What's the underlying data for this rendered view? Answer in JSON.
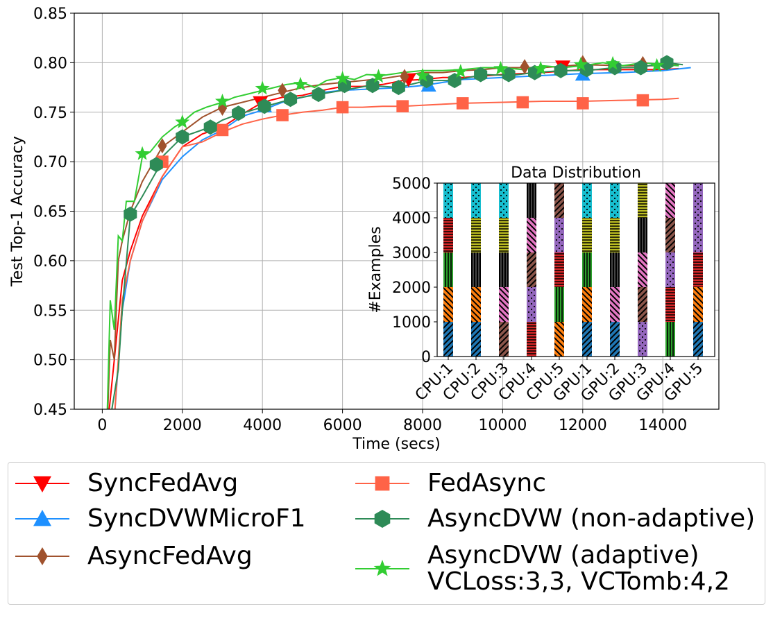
{
  "chart_data": [
    {
      "type": "line",
      "title": "",
      "xlabel": "Time (secs)",
      "ylabel": "Test Top-1 Accuracy",
      "xlim": [
        -700,
        15400
      ],
      "ylim": [
        0.45,
        0.85
      ],
      "xticks": [
        0,
        2000,
        4000,
        6000,
        8000,
        10000,
        12000,
        14000
      ],
      "yticks": [
        0.45,
        0.5,
        0.55,
        0.6,
        0.65,
        0.7,
        0.75,
        0.8,
        0.85
      ],
      "xtick_labels": [
        "0",
        "2000",
        "4000",
        "6000",
        "8000",
        "10000",
        "12000",
        "14000"
      ],
      "ytick_labels": [
        "0.45",
        "0.50",
        "0.55",
        "0.60",
        "0.65",
        "0.70",
        "0.75",
        "0.80",
        "0.85"
      ],
      "grid": true,
      "series": [
        {
          "name": "SyncFedAvg",
          "color": "#ff0000",
          "marker": "triangle-down",
          "x": [
            150,
            300,
            500,
            700,
            1000,
            1500,
            2000,
            2500,
            3000,
            3500,
            4000,
            4500,
            5000,
            5500,
            6000,
            6500,
            7000,
            7500,
            8000,
            8500,
            9000,
            10000,
            11000,
            12000,
            13000,
            14000,
            14400
          ],
          "y": [
            0.44,
            0.5,
            0.58,
            0.61,
            0.645,
            0.685,
            0.715,
            0.728,
            0.735,
            0.748,
            0.76,
            0.765,
            0.767,
            0.772,
            0.776,
            0.776,
            0.778,
            0.782,
            0.783,
            0.785,
            0.785,
            0.788,
            0.79,
            0.793,
            0.793,
            0.793,
            0.794
          ],
          "markers_x": [
            3950,
            7650,
            11500
          ],
          "markers_y": [
            0.76,
            0.783,
            0.796
          ]
        },
        {
          "name": "SyncDVWMicroF1",
          "color": "#1e90ff",
          "marker": "triangle-up",
          "x": [
            300,
            500,
            700,
            1000,
            1500,
            2000,
            2500,
            3000,
            3500,
            4000,
            4500,
            5000,
            5500,
            6000,
            6500,
            7000,
            7500,
            8000,
            8500,
            9000,
            10000,
            11000,
            12000,
            13000,
            14000,
            14700
          ],
          "y": [
            0.44,
            0.55,
            0.6,
            0.64,
            0.682,
            0.705,
            0.722,
            0.732,
            0.746,
            0.752,
            0.76,
            0.765,
            0.77,
            0.772,
            0.773,
            0.774,
            0.775,
            0.777,
            0.78,
            0.783,
            0.785,
            0.787,
            0.789,
            0.79,
            0.792,
            0.795
          ],
          "markers_x": [
            4050,
            8150,
            12000
          ],
          "markers_y": [
            0.756,
            0.777,
            0.788
          ]
        },
        {
          "name": "AsyncFedAvg",
          "color": "#a0522d",
          "marker": "diamond",
          "x": [
            130,
            200,
            300,
            400,
            500,
            700,
            1000,
            1500,
            2000,
            2500,
            3000,
            3500,
            4000,
            4500,
            5000,
            5500,
            6000,
            6500,
            7000,
            7500,
            8000,
            8500,
            9000,
            9500,
            10000,
            11000,
            12000,
            13000,
            14000,
            14400
          ],
          "y": [
            0.44,
            0.52,
            0.5,
            0.6,
            0.62,
            0.65,
            0.68,
            0.715,
            0.73,
            0.745,
            0.755,
            0.76,
            0.765,
            0.77,
            0.775,
            0.778,
            0.78,
            0.782,
            0.784,
            0.787,
            0.79,
            0.79,
            0.792,
            0.793,
            0.795,
            0.795,
            0.798,
            0.797,
            0.797,
            0.798
          ],
          "markers_x": [
            1500,
            3000,
            4500,
            7550,
            10550,
            12000,
            13500
          ],
          "markers_y": [
            0.716,
            0.754,
            0.772,
            0.786,
            0.796,
            0.8,
            0.799
          ]
        },
        {
          "name": "FedAsync",
          "color": "#ff6347",
          "marker": "square",
          "x": [
            300,
            500,
            700,
            1000,
            1500,
            2000,
            2500,
            3000,
            3500,
            4000,
            4500,
            5000,
            5500,
            6000,
            6500,
            7000,
            7500,
            8000,
            8500,
            9000,
            10000,
            11000,
            12000,
            13000,
            14000,
            14400
          ],
          "y": [
            0.44,
            0.56,
            0.6,
            0.64,
            0.685,
            0.715,
            0.72,
            0.73,
            0.738,
            0.743,
            0.747,
            0.75,
            0.752,
            0.755,
            0.755,
            0.756,
            0.756,
            0.757,
            0.758,
            0.759,
            0.76,
            0.761,
            0.761,
            0.762,
            0.763,
            0.764
          ],
          "markers_x": [
            1500,
            3000,
            4500,
            6000,
            7500,
            9000,
            10500,
            12000,
            13500
          ],
          "markers_y": [
            0.7,
            0.732,
            0.747,
            0.755,
            0.756,
            0.759,
            0.76,
            0.759,
            0.762
          ]
        },
        {
          "name": "AsyncDVW (non-adaptive)",
          "color": "#2e8b57",
          "marker": "hexagon",
          "x": [
            200,
            400,
            500,
            700,
            1000,
            1350,
            1500,
            2000,
            2700,
            3000,
            3400,
            4000,
            4700,
            5400,
            6000,
            6700,
            7400,
            8100,
            8800,
            9500,
            10200,
            10800,
            11500,
            12100,
            12800,
            13400,
            14100,
            14500
          ],
          "y": [
            0.44,
            0.49,
            0.55,
            0.645,
            0.665,
            0.69,
            0.705,
            0.725,
            0.735,
            0.742,
            0.748,
            0.755,
            0.763,
            0.768,
            0.772,
            0.777,
            0.775,
            0.782,
            0.782,
            0.788,
            0.787,
            0.79,
            0.792,
            0.792,
            0.795,
            0.795,
            0.8,
            0.798
          ],
          "markers_x": [
            700,
            1350,
            2000,
            2700,
            3400,
            4050,
            4700,
            5400,
            6050,
            6750,
            7400,
            8100,
            8800,
            9450,
            10150,
            10800,
            11450,
            12100,
            12800,
            13450,
            14100
          ],
          "markers_y": [
            0.647,
            0.697,
            0.725,
            0.735,
            0.749,
            0.756,
            0.763,
            0.768,
            0.777,
            0.777,
            0.775,
            0.782,
            0.782,
            0.788,
            0.788,
            0.79,
            0.792,
            0.793,
            0.795,
            0.795,
            0.8
          ]
        },
        {
          "name": "AsyncDVW (adaptive)\nVCLoss:3,3, VCTomb:4,2",
          "color": "#32cd32",
          "marker": "star",
          "x": [
            120,
            200,
            300,
            400,
            500,
            600,
            800,
            1000,
            1200,
            1500,
            1800,
            2000,
            2300,
            2600,
            3000,
            3300,
            3600,
            4000,
            4300,
            4600,
            5000,
            5300,
            5600,
            6000,
            6300,
            6600,
            7000,
            7500,
            8000,
            8500,
            9000,
            9500,
            10000,
            10500,
            11000,
            11500,
            12000,
            12500,
            13000,
            13500,
            14000,
            14400
          ],
          "y": [
            0.44,
            0.56,
            0.53,
            0.625,
            0.62,
            0.66,
            0.66,
            0.705,
            0.71,
            0.725,
            0.735,
            0.74,
            0.75,
            0.755,
            0.76,
            0.765,
            0.768,
            0.772,
            0.775,
            0.778,
            0.78,
            0.775,
            0.782,
            0.785,
            0.783,
            0.788,
            0.787,
            0.79,
            0.792,
            0.792,
            0.793,
            0.795,
            0.795,
            0.793,
            0.797,
            0.795,
            0.797,
            0.8,
            0.797,
            0.8,
            0.798,
            0.797
          ],
          "markers_x": [
            1000,
            2000,
            3000,
            4000,
            4950,
            6000,
            6900,
            8000,
            8950,
            9950,
            10950,
            11950,
            12750,
            13850
          ],
          "markers_y": [
            0.708,
            0.74,
            0.761,
            0.774,
            0.778,
            0.784,
            0.786,
            0.787,
            0.791,
            0.794,
            0.794,
            0.798,
            0.799,
            0.797
          ]
        }
      ]
    },
    {
      "type": "bar",
      "stacked": true,
      "title": "Data Distribution",
      "xlabel": "",
      "ylabel": "#Examples",
      "ylim": [
        0,
        5000
      ],
      "yticks": [
        0,
        1000,
        2000,
        3000,
        4000,
        5000
      ],
      "ytick_labels": [
        "0",
        "1000",
        "2000",
        "3000",
        "4000",
        "5000"
      ],
      "categories": [
        "CPU:1",
        "CPU:2",
        "CPU:3",
        "CPU:4",
        "CPU:5",
        "GPU:1",
        "GPU:2",
        "GPU:3",
        "GPU:4",
        "GPU:5"
      ],
      "class_colors": [
        "#1f77b4",
        "#ff7f0e",
        "#2ca02c",
        "#d62728",
        "#9467bd",
        "#8c564b",
        "#e377c2",
        "#000000",
        "#bcbd22",
        "#17becf"
      ],
      "stacks": [
        [
          0,
          1,
          2,
          3,
          9
        ],
        [
          0,
          1,
          7,
          8,
          9
        ],
        [
          5,
          6,
          7,
          8,
          9
        ],
        [
          3,
          4,
          5,
          6,
          7
        ],
        [
          1,
          2,
          3,
          4,
          5
        ],
        [
          0,
          1,
          2,
          8,
          9
        ],
        [
          0,
          6,
          7,
          8,
          9
        ],
        [
          4,
          5,
          6,
          7,
          8
        ],
        [
          2,
          3,
          4,
          5,
          6
        ],
        [
          0,
          1,
          3,
          4,
          4
        ]
      ],
      "segment_value": 1000
    }
  ],
  "legend": [
    {
      "label": "SyncFedAvg",
      "color": "#ff0000",
      "marker": "triangle-down"
    },
    {
      "label": "SyncDVWMicroF1",
      "color": "#1e90ff",
      "marker": "triangle-up"
    },
    {
      "label": "AsyncFedAvg",
      "color": "#a0522d",
      "marker": "diamond"
    },
    {
      "label": "FedAsync",
      "color": "#ff6347",
      "marker": "square"
    },
    {
      "label": "AsyncDVW (non-adaptive)",
      "color": "#2e8b57",
      "marker": "hexagon"
    },
    {
      "label": "AsyncDVW (adaptive)\nVCLoss:3,3, VCTomb:4,2",
      "color": "#32cd32",
      "marker": "star"
    }
  ]
}
